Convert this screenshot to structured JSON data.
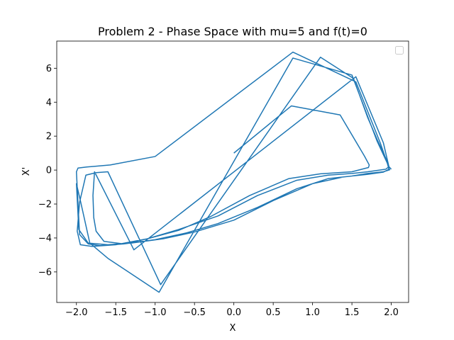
{
  "chart_data": {
    "type": "line",
    "title": "Problem 2 - Phase Space with mu=5 and f(t)=0",
    "xlabel": "X",
    "ylabel": "X'",
    "xlim": [
      -2.25,
      2.22
    ],
    "ylim": [
      -7.8,
      7.6
    ],
    "xticks": [
      -2.0,
      -1.5,
      -1.0,
      -0.5,
      0.0,
      0.5,
      1.0,
      1.5,
      2.0
    ],
    "xtick_labels": [
      "−2.0",
      "−1.5",
      "−1.0",
      "−0.5",
      "0.0",
      "0.5",
      "1.0",
      "1.5",
      "2.0"
    ],
    "yticks": [
      -6,
      -4,
      -2,
      0,
      2,
      4,
      6
    ],
    "ytick_labels": [
      "−6",
      "−4",
      "−2",
      "0",
      "2",
      "4",
      "6"
    ],
    "grid": false,
    "legend": {
      "placement": "top-right",
      "entries": []
    },
    "colors": {
      "line": "#1f77b4",
      "axes": "#000000"
    },
    "series": [
      {
        "x": [
          0.0,
          0.73,
          1.35,
          1.66,
          1.72,
          1.71,
          1.5,
          1.1,
          0.7,
          0.2,
          -0.3,
          -0.7,
          -1.1,
          -1.4,
          -1.65,
          -1.75,
          -1.78,
          -1.79,
          -1.77,
          -1.27,
          1.55,
          1.9,
          1.97,
          1.93,
          1.7,
          1.5,
          1.2,
          0.8,
          0.3,
          -0.2,
          -0.7,
          -1.1,
          -1.5,
          -1.8,
          -1.95,
          -1.99,
          -1.96,
          -1.88,
          -1.75,
          -1.6,
          -0.93,
          1.1,
          1.52,
          1.7,
          1.82,
          1.93,
          1.97,
          1.98,
          1.9,
          1.7,
          1.5,
          1.2,
          0.8,
          0.3,
          -0.2,
          -0.6,
          -1.0,
          -1.4,
          -1.7,
          -1.85,
          -1.96,
          -2.0,
          -1.98,
          -1.87,
          -1.57,
          -1.0,
          0.75,
          1.55,
          1.86,
          1.95,
          1.97,
          1.9,
          1.7,
          1.4,
          1.0,
          0.5,
          0.0,
          -0.5,
          -0.9,
          -1.3,
          -1.6,
          -1.85,
          -1.97,
          -2.0,
          -1.95,
          -1.83,
          -1.6,
          -0.95,
          0.75,
          1.5,
          1.82,
          1.97,
          2.0
        ],
        "y": [
          1.0,
          3.78,
          3.25,
          0.82,
          0.3,
          0.15,
          -0.1,
          -0.22,
          -0.5,
          -1.5,
          -2.75,
          -3.55,
          -4.05,
          -4.35,
          -4.2,
          -3.6,
          -2.8,
          -1.5,
          -0.1,
          -4.7,
          5.5,
          1.6,
          0.2,
          0.05,
          -0.1,
          -0.2,
          -0.3,
          -0.6,
          -1.5,
          -2.7,
          -3.5,
          -4.05,
          -4.4,
          -4.5,
          -4.4,
          -3.6,
          -1.9,
          -0.3,
          -0.15,
          -0.1,
          -6.75,
          6.65,
          5.4,
          3.1,
          1.8,
          0.7,
          0.1,
          0.02,
          -0.1,
          -0.2,
          -0.35,
          -0.5,
          -1.1,
          -2.2,
          -3.15,
          -3.7,
          -4.1,
          -4.35,
          -4.45,
          -4.35,
          -3.8,
          -0.1,
          0.12,
          0.18,
          0.3,
          0.8,
          6.95,
          5.2,
          1.6,
          0.4,
          0.05,
          -0.12,
          -0.25,
          -0.4,
          -0.8,
          -1.8,
          -2.95,
          -3.65,
          -4.05,
          -4.3,
          -4.4,
          -4.3,
          -3.5,
          -0.8,
          -1.8,
          -4.3,
          -5.2,
          -7.2,
          6.6,
          5.6,
          1.7,
          0.2,
          0.05
        ]
      }
    ]
  }
}
